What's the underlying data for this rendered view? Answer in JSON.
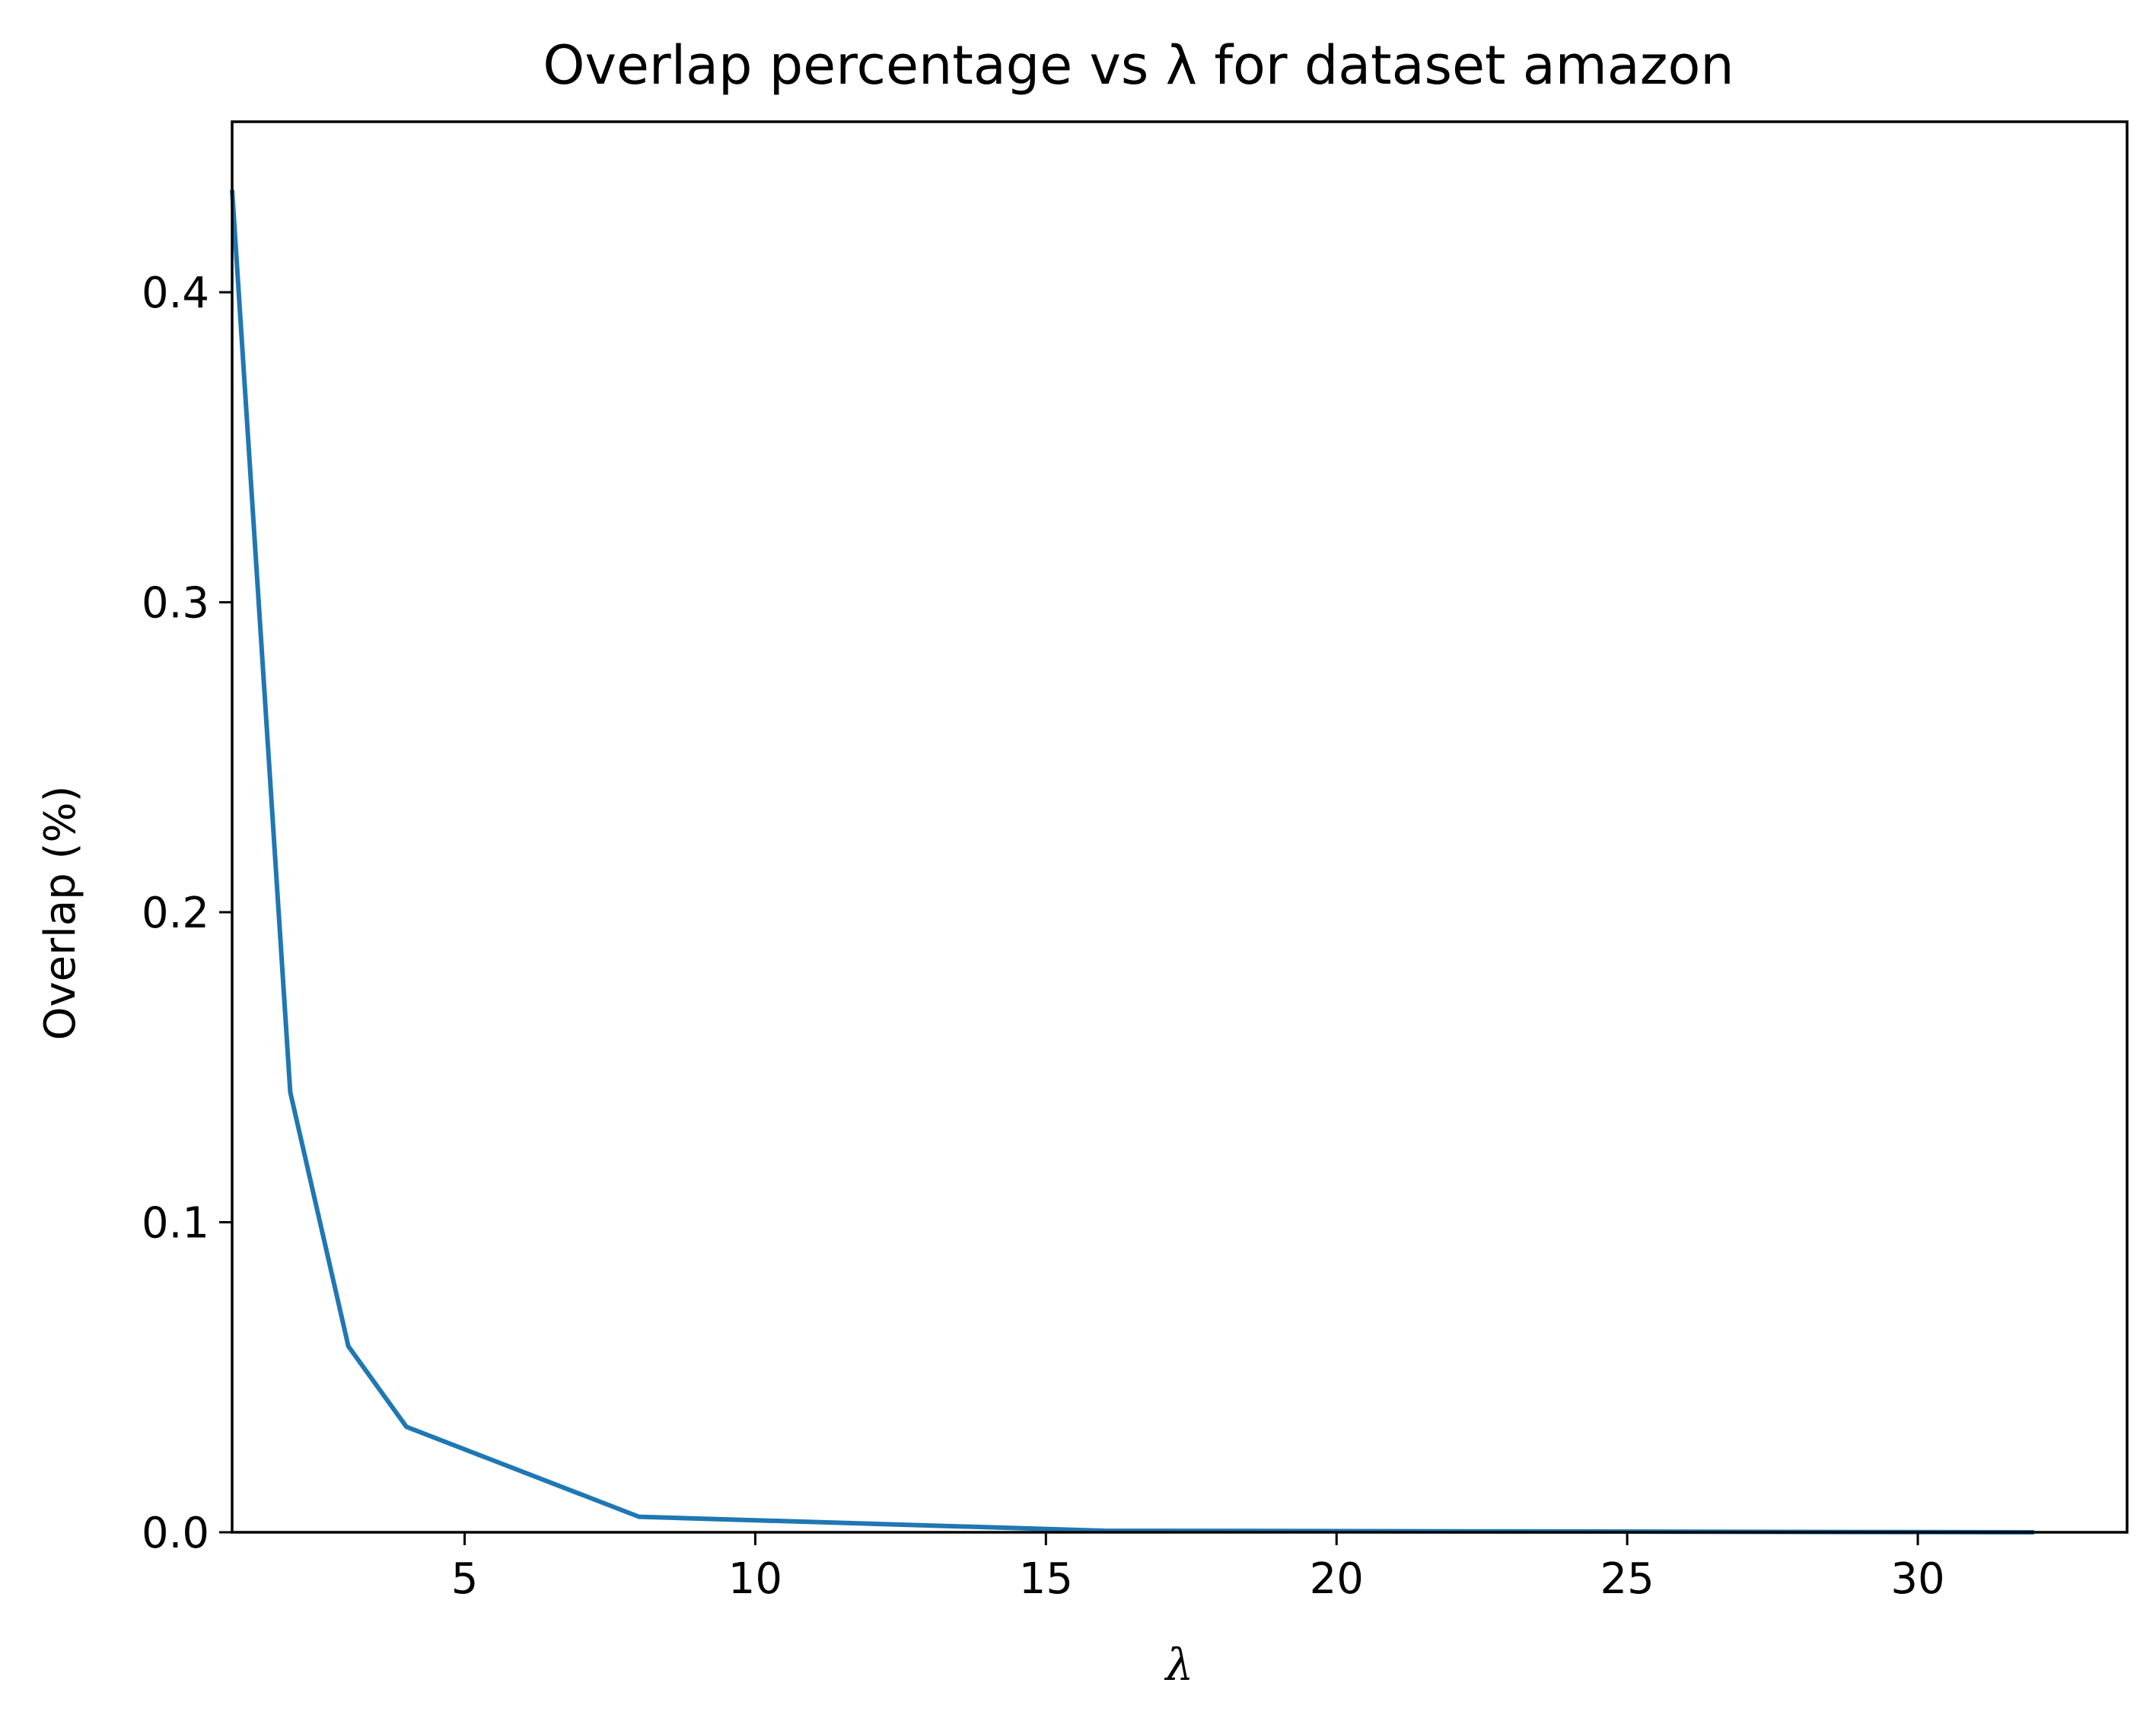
{
  "chart_data": {
    "type": "line",
    "title": "Overlap percentage vs λ for dataset amazon",
    "xlabel": "λ",
    "ylabel": "Overlap (%)",
    "xlim": [
      1,
      33.6
    ],
    "ylim": [
      0,
      0.455
    ],
    "xticks": [
      5,
      10,
      15,
      20,
      25,
      30
    ],
    "yticks": [
      0.0,
      0.1,
      0.2,
      0.3,
      0.4
    ],
    "ytick_labels": [
      "0.0",
      "0.1",
      "0.2",
      "0.3",
      "0.4"
    ],
    "grid": false,
    "series": [
      {
        "color": "#1f77b4",
        "x": [
          1,
          2,
          3,
          4,
          8,
          16,
          32
        ],
        "y": [
          0.433,
          0.142,
          0.06,
          0.034,
          0.005,
          0.0005,
          0.0
        ]
      }
    ]
  }
}
